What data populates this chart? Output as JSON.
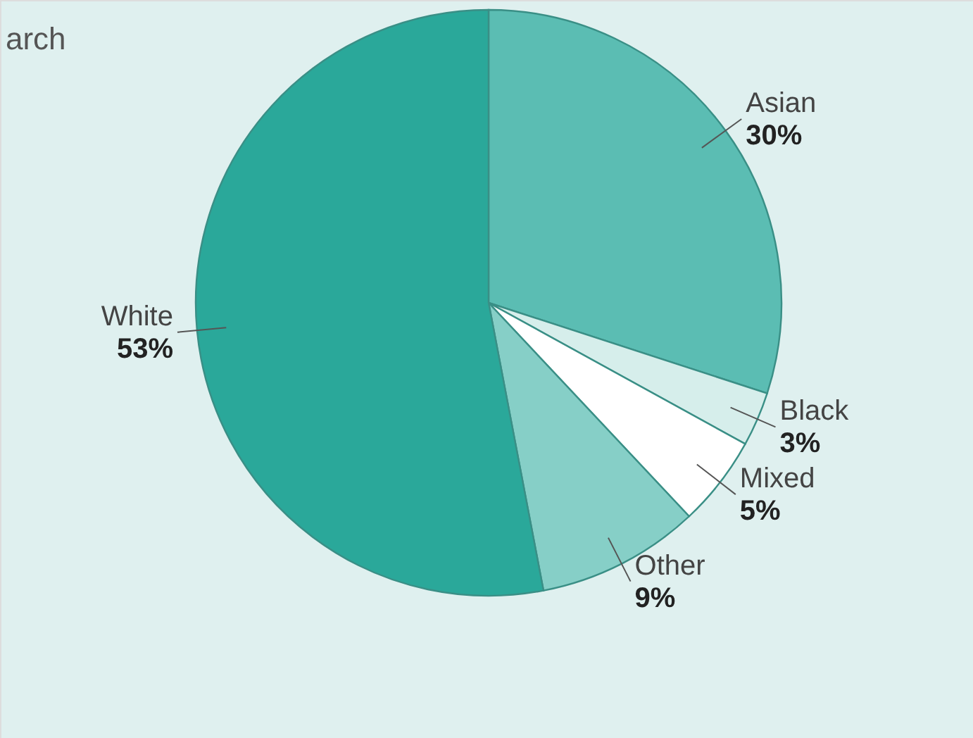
{
  "chart_data": {
    "type": "pie",
    "title": "arch",
    "categories": [
      "Asian",
      "Black",
      "Mixed",
      "Other",
      "White"
    ],
    "values": [
      30,
      3,
      5,
      9,
      53
    ],
    "value_labels": [
      "30%",
      "3%",
      "5%",
      "9%",
      "53%"
    ],
    "colors": [
      "#5bbdb3",
      "#d6eeeb",
      "#ffffff",
      "#86cfc7",
      "#2aa89a"
    ]
  }
}
